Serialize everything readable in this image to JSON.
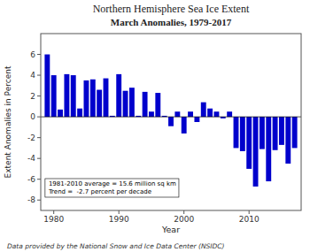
{
  "chart_data": {
    "type": "bar",
    "title": "Northern Hemisphere Sea Ice Extent",
    "subtitle": "March Anomalies, 1979-2017",
    "x_label": "Year",
    "y_label": "Extent Anomalies in Percent",
    "footnote": "Data provided by the National Snow and Ice Data Center (NSIDC)",
    "annotations": [
      "1981-2010 average = 15.6 million sq km",
      "Trend =  -2.7 percent per decade"
    ],
    "x": [
      1979,
      1980,
      1981,
      1982,
      1983,
      1984,
      1985,
      1986,
      1987,
      1988,
      1989,
      1990,
      1991,
      1992,
      1993,
      1994,
      1995,
      1996,
      1997,
      1998,
      1999,
      2000,
      2001,
      2002,
      2003,
      2004,
      2005,
      2006,
      2007,
      2008,
      2009,
      2010,
      2011,
      2012,
      2013,
      2014,
      2015,
      2016,
      2017
    ],
    "values": [
      6.0,
      4.0,
      0.7,
      4.1,
      4.0,
      0.8,
      3.5,
      3.6,
      2.6,
      3.7,
      0.1,
      4.1,
      2.5,
      2.8,
      0.1,
      2.4,
      0.5,
      2.3,
      0.1,
      -0.9,
      0.5,
      -1.6,
      0.5,
      -0.5,
      1.4,
      0.8,
      0.5,
      -0.15,
      0.5,
      -3.0,
      -3.3,
      -5.0,
      -6.7,
      -3.1,
      -6.2,
      -3.2,
      -2.7,
      -4.5,
      -3.0
    ],
    "color": "#0000CC",
    "xlim": [
      1978,
      2018
    ],
    "xticks": [
      1980,
      1990,
      2000,
      2010
    ],
    "ylim": [
      -9,
      8
    ],
    "yticks": [
      -8,
      -6,
      -4,
      -2,
      0,
      2,
      4,
      6
    ],
    "grid": false
  }
}
